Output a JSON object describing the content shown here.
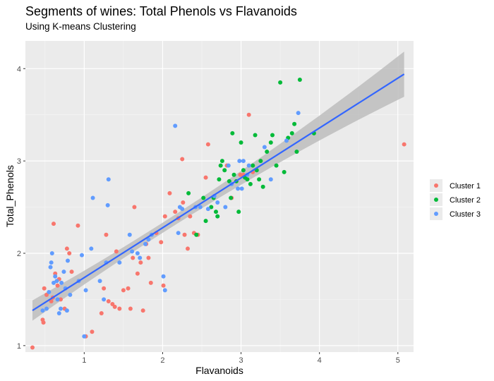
{
  "chart_data": {
    "type": "scatter",
    "title": "Segments of wines: Total Phenols vs Flavanoids",
    "subtitle": "Using K-means Clustering",
    "xlabel": "Flavanoids",
    "ylabel": "Total_Phenols",
    "xlim": [
      0.25,
      5.2
    ],
    "ylim": [
      0.93,
      4.3
    ],
    "xticks": [
      1,
      2,
      3,
      4,
      5
    ],
    "yticks": [
      1,
      2,
      3,
      4
    ],
    "grid": true,
    "legend_position": "right",
    "trend_line": {
      "x": [
        0.34,
        5.08
      ],
      "y": [
        1.38,
        3.94
      ],
      "color": "#3366ff",
      "band_color": "#bdbdbd"
    },
    "series": [
      {
        "name": "Cluster 1",
        "color": "#f8766d",
        "points": [
          [
            0.34,
            0.98
          ],
          [
            0.47,
            1.28
          ],
          [
            0.48,
            1.25
          ],
          [
            0.49,
            1.62
          ],
          [
            0.52,
            1.55
          ],
          [
            0.58,
            1.48
          ],
          [
            0.6,
            1.52
          ],
          [
            0.61,
            2.32
          ],
          [
            0.63,
            1.78
          ],
          [
            0.66,
            1.65
          ],
          [
            0.68,
            1.72
          ],
          [
            0.7,
            1.5
          ],
          [
            0.75,
            1.4
          ],
          [
            0.78,
            2.05
          ],
          [
            0.81,
            2.0
          ],
          [
            0.84,
            1.8
          ],
          [
            0.92,
            2.3
          ],
          [
            1.02,
            1.1
          ],
          [
            1.1,
            1.15
          ],
          [
            1.22,
            1.35
          ],
          [
            1.25,
            1.62
          ],
          [
            1.28,
            2.2
          ],
          [
            1.31,
            1.48
          ],
          [
            1.36,
            1.45
          ],
          [
            1.39,
            1.42
          ],
          [
            1.41,
            2.02
          ],
          [
            1.45,
            1.4
          ],
          [
            1.5,
            1.6
          ],
          [
            1.56,
            1.62
          ],
          [
            1.59,
            1.4
          ],
          [
            1.62,
            1.95
          ],
          [
            1.64,
            2.5
          ],
          [
            1.68,
            1.78
          ],
          [
            1.72,
            1.9
          ],
          [
            1.75,
            1.38
          ],
          [
            1.79,
            2.1
          ],
          [
            1.82,
            1.95
          ],
          [
            1.85,
            1.68
          ],
          [
            1.92,
            2.22
          ],
          [
            1.98,
            2.12
          ],
          [
            2.01,
            1.65
          ],
          [
            2.03,
            2.4
          ],
          [
            2.09,
            2.65
          ],
          [
            2.16,
            2.45
          ],
          [
            2.2,
            2.38
          ],
          [
            2.25,
            3.02
          ],
          [
            2.26,
            2.55
          ],
          [
            2.28,
            2.2
          ],
          [
            2.32,
            2.05
          ],
          [
            2.35,
            2.4
          ],
          [
            2.4,
            2.22
          ],
          [
            2.45,
            2.2
          ],
          [
            2.55,
            2.82
          ],
          [
            2.58,
            3.18
          ],
          [
            2.82,
            2.95
          ],
          [
            2.88,
            2.6
          ],
          [
            2.99,
            2.85
          ],
          [
            3.03,
            2.85
          ],
          [
            3.1,
            3.5
          ],
          [
            3.15,
            2.88
          ],
          [
            5.08,
            3.18
          ]
        ]
      },
      {
        "name": "Cluster 2",
        "color": "#00ba38",
        "points": [
          [
            2.33,
            2.65
          ],
          [
            2.43,
            2.2
          ],
          [
            2.52,
            2.6
          ],
          [
            2.55,
            2.35
          ],
          [
            2.62,
            2.5
          ],
          [
            2.65,
            2.6
          ],
          [
            2.68,
            2.45
          ],
          [
            2.7,
            2.4
          ],
          [
            2.72,
            2.8
          ],
          [
            2.74,
            2.95
          ],
          [
            2.76,
            3.0
          ],
          [
            2.79,
            2.9
          ],
          [
            2.85,
            2.78
          ],
          [
            2.87,
            2.6
          ],
          [
            2.89,
            3.3
          ],
          [
            2.91,
            2.85
          ],
          [
            2.94,
            2.78
          ],
          [
            2.97,
            2.45
          ],
          [
            3.0,
            3.2
          ],
          [
            3.03,
            2.9
          ],
          [
            3.05,
            2.82
          ],
          [
            3.08,
            2.8
          ],
          [
            3.12,
            2.75
          ],
          [
            3.15,
            2.95
          ],
          [
            3.18,
            3.28
          ],
          [
            3.2,
            2.9
          ],
          [
            3.23,
            2.8
          ],
          [
            3.25,
            3.0
          ],
          [
            3.28,
            2.72
          ],
          [
            3.33,
            3.1
          ],
          [
            3.38,
            3.2
          ],
          [
            3.4,
            3.28
          ],
          [
            3.45,
            2.95
          ],
          [
            3.5,
            3.85
          ],
          [
            3.55,
            2.88
          ],
          [
            3.6,
            3.25
          ],
          [
            3.65,
            3.3
          ],
          [
            3.68,
            3.4
          ],
          [
            3.71,
            3.1
          ],
          [
            3.75,
            3.88
          ],
          [
            3.93,
            3.3
          ]
        ]
      },
      {
        "name": "Cluster 3",
        "color": "#619cff",
        "points": [
          [
            0.47,
            1.38
          ],
          [
            0.52,
            1.4
          ],
          [
            0.55,
            1.58
          ],
          [
            0.57,
            1.85
          ],
          [
            0.58,
            1.9
          ],
          [
            0.59,
            2.0
          ],
          [
            0.61,
            1.68
          ],
          [
            0.63,
            1.75
          ],
          [
            0.65,
            1.7
          ],
          [
            0.66,
            1.5
          ],
          [
            0.68,
            1.35
          ],
          [
            0.7,
            1.4
          ],
          [
            0.71,
            1.68
          ],
          [
            0.74,
            1.8
          ],
          [
            0.76,
            1.62
          ],
          [
            0.78,
            1.38
          ],
          [
            0.79,
            1.92
          ],
          [
            0.82,
            1.55
          ],
          [
            0.93,
            1.7
          ],
          [
            0.97,
            1.98
          ],
          [
            1.0,
            1.1
          ],
          [
            1.02,
            1.6
          ],
          [
            1.09,
            2.05
          ],
          [
            1.11,
            2.6
          ],
          [
            1.2,
            1.7
          ],
          [
            1.25,
            1.5
          ],
          [
            1.28,
            1.9
          ],
          [
            1.3,
            2.52
          ],
          [
            1.31,
            2.8
          ],
          [
            1.45,
            1.9
          ],
          [
            1.58,
            2.2
          ],
          [
            1.61,
            2.02
          ],
          [
            1.68,
            2.0
          ],
          [
            1.71,
            1.95
          ],
          [
            1.78,
            2.1
          ],
          [
            1.82,
            2.15
          ],
          [
            1.86,
            2.2
          ],
          [
            2.01,
            1.75
          ],
          [
            2.03,
            1.6
          ],
          [
            2.16,
            3.38
          ],
          [
            2.2,
            2.22
          ],
          [
            2.22,
            2.5
          ],
          [
            2.25,
            2.48
          ],
          [
            2.42,
            2.5
          ],
          [
            2.48,
            2.5
          ],
          [
            2.58,
            2.48
          ],
          [
            2.66,
            2.62
          ],
          [
            2.7,
            2.55
          ],
          [
            2.8,
            2.5
          ],
          [
            2.84,
            2.95
          ],
          [
            2.88,
            2.75
          ],
          [
            2.96,
            2.7
          ],
          [
            2.98,
            3.0
          ],
          [
            3.01,
            2.7
          ],
          [
            3.03,
            3.0
          ],
          [
            3.08,
            2.85
          ],
          [
            3.1,
            2.95
          ],
          [
            3.3,
            3.15
          ],
          [
            3.38,
            2.8
          ],
          [
            3.58,
            3.22
          ],
          [
            3.73,
            3.52
          ]
        ]
      }
    ]
  }
}
